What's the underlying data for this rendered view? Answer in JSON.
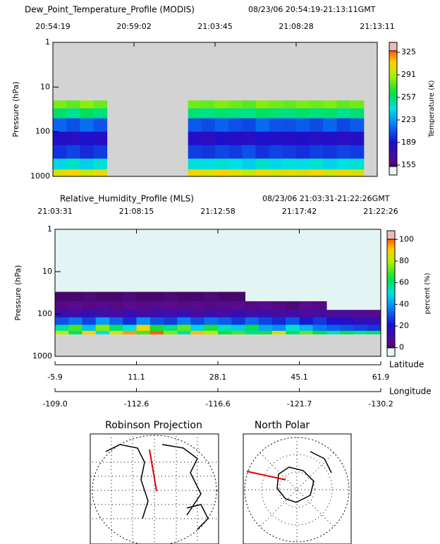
{
  "chart_data": [
    {
      "type": "heatmap",
      "title": "Dew_Point_Temperature_Profile (MODIS)",
      "subtitle": "08/23/06 20:54:19-21:13:11GMT",
      "y_label": "Pressure (hPa)",
      "colorbar_label": "Temperature (K)",
      "xtick_labels": [
        "20:54:19",
        "20:59:02",
        "21:03:45",
        "21:08:28",
        "21:13:11"
      ],
      "ylim": [
        1,
        1000
      ],
      "yticks": [
        1,
        10,
        100,
        1000
      ],
      "log_y": true,
      "y_edges": [
        20,
        30,
        50,
        100,
        200,
        400,
        700,
        1000
      ],
      "values": [
        [
          282,
          258,
          210,
          186,
          198,
          238,
          302
        ],
        [
          278,
          252,
          205,
          184,
          202,
          244,
          308
        ],
        [
          285,
          260,
          212,
          188,
          196,
          236,
          298
        ],
        [
          280,
          255,
          206,
          185,
          200,
          242,
          304
        ],
        null,
        null,
        null,
        null,
        null,
        null,
        [
          281,
          256,
          207,
          186,
          201,
          241,
          306
        ],
        [
          279,
          254,
          204,
          183,
          199,
          239,
          300
        ],
        [
          283,
          257,
          209,
          187,
          203,
          243,
          310
        ],
        [
          280,
          255,
          205,
          185,
          200,
          240,
          302
        ],
        [
          277,
          253,
          203,
          184,
          205,
          236,
          296
        ],
        [
          284,
          259,
          211,
          188,
          198,
          244,
          305
        ],
        [
          281,
          256,
          206,
          186,
          202,
          238,
          299
        ],
        [
          279,
          254,
          205,
          185,
          200,
          241,
          303
        ],
        [
          282,
          258,
          208,
          187,
          197,
          239,
          301
        ],
        [
          280,
          255,
          204,
          184,
          201,
          243,
          307
        ],
        [
          283,
          257,
          210,
          186,
          199,
          237,
          298
        ],
        [
          278,
          252,
          203,
          183,
          202,
          240,
          304
        ],
        [
          281,
          256,
          207,
          185,
          200,
          242,
          300
        ],
        null
      ],
      "clim": [
        140,
        340
      ],
      "cticks": [
        155,
        189,
        223,
        257,
        291,
        325
      ]
    },
    {
      "type": "heatmap",
      "title": "Relative_Humidity_Profile (MLS)",
      "subtitle": "08/23/06 21:03:31-21:22:26GMT",
      "y_label": "Pressure (hPa)",
      "colorbar_label": "percent (%)",
      "xtick_labels": [
        "21:03:31",
        "21:08:15",
        "21:12:58",
        "21:17:42",
        "21:22:26"
      ],
      "ylim": [
        1,
        1000
      ],
      "yticks": [
        1,
        10,
        100,
        1000
      ],
      "log_y": true,
      "y_edges": [
        30,
        50,
        80,
        120,
        180,
        250,
        300
      ],
      "values": [
        [
          1,
          3,
          12,
          30,
          55,
          80
        ],
        [
          1,
          4,
          10,
          35,
          70,
          60
        ],
        [
          2,
          3,
          14,
          28,
          45,
          90
        ],
        [
          1,
          5,
          11,
          40,
          75,
          50
        ],
        [
          1,
          3,
          9,
          32,
          60,
          85
        ],
        [
          2,
          4,
          13,
          25,
          50,
          95
        ],
        [
          1,
          3,
          10,
          38,
          88,
          70
        ],
        [
          1,
          5,
          12,
          30,
          65,
          100
        ],
        [
          2,
          4,
          11,
          27,
          58,
          75
        ],
        [
          1,
          3,
          14,
          36,
          72,
          55
        ],
        [
          1,
          4,
          9,
          29,
          48,
          92
        ],
        [
          2,
          3,
          12,
          34,
          66,
          80
        ],
        [
          1,
          5,
          10,
          31,
          54,
          65
        ],
        [
          1,
          4,
          13,
          26,
          47,
          70
        ],
        [
          null,
          3,
          11,
          33,
          62,
          58
        ],
        [
          null,
          4,
          12,
          28,
          42,
          66
        ],
        [
          null,
          3,
          9,
          24,
          38,
          85
        ],
        [
          null,
          2,
          10,
          30,
          52,
          60
        ],
        [
          null,
          4,
          8,
          22,
          44,
          72
        ],
        [
          null,
          3,
          9,
          26,
          35,
          64
        ],
        [
          null,
          null,
          7,
          20,
          32,
          55
        ],
        [
          null,
          null,
          8,
          18,
          30,
          62
        ],
        [
          null,
          null,
          6,
          15,
          28,
          58
        ],
        [
          null,
          null,
          5,
          14,
          26,
          60
        ]
      ],
      "clim": [
        -8,
        108
      ],
      "cticks": [
        0,
        20,
        40,
        60,
        80,
        100
      ],
      "x2_label": "Latitude",
      "x2_ticks": [
        -5.9,
        11.1,
        28.1,
        45.1,
        61.9
      ],
      "x3_label": "Longitude",
      "x3_ticks": [
        {
          "value": -109,
          "label": "-109.0"
        },
        -112.6,
        -116.6,
        -121.7,
        -130.2
      ]
    }
  ],
  "maps": [
    {
      "title": "Robinson  Projection"
    },
    {
      "title": "North Polar"
    }
  ]
}
